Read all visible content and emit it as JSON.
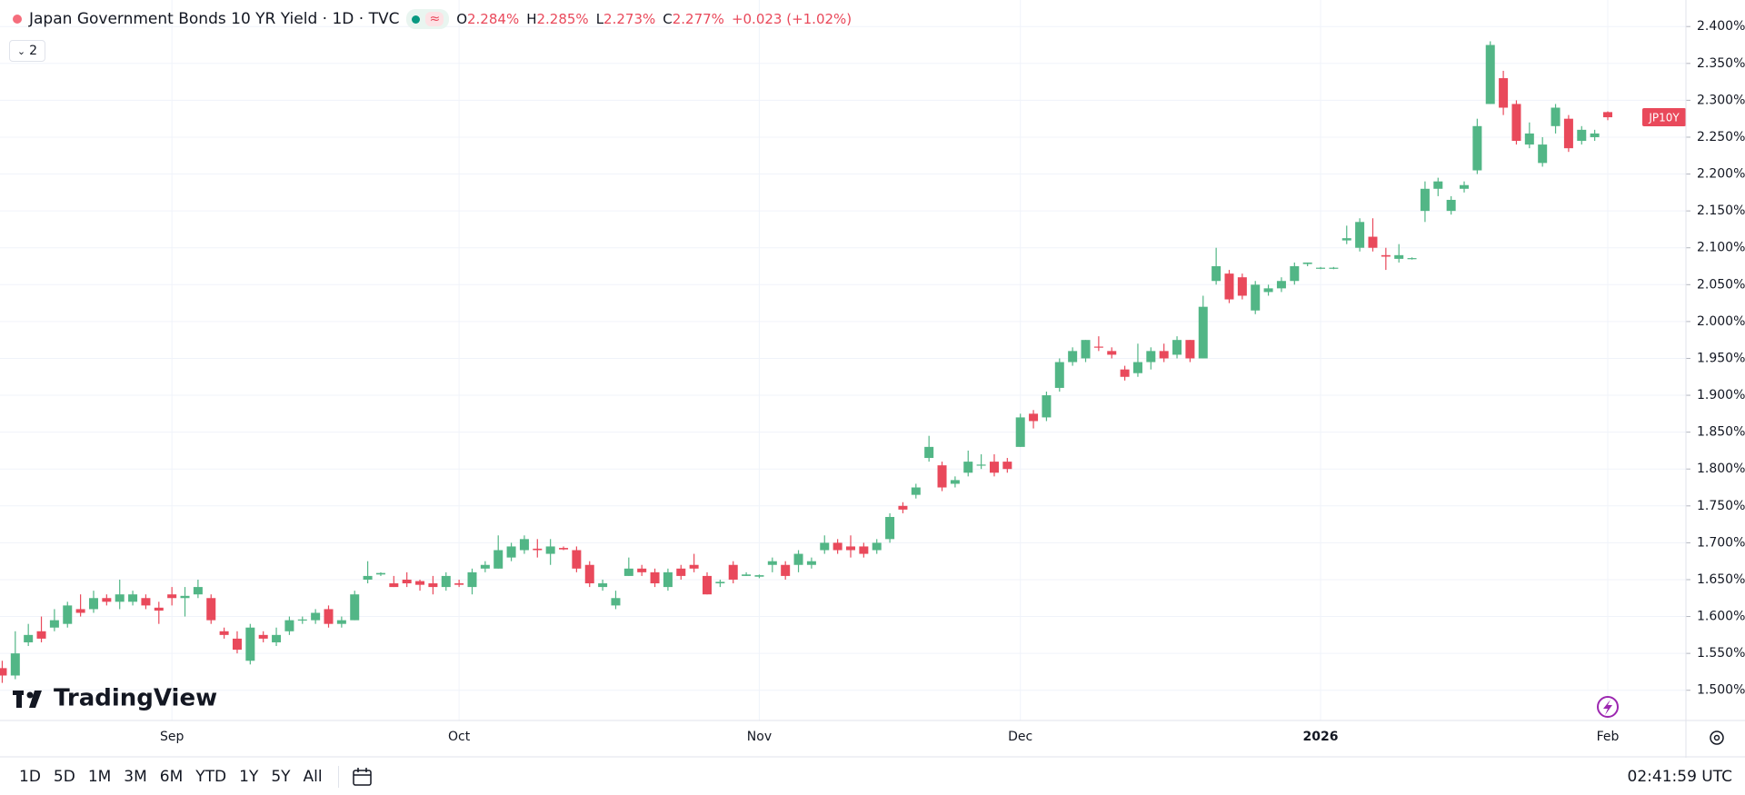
{
  "header": {
    "title": "Japan Government Bonds 10 YR Yield · 1D · TVC",
    "ohlc": [
      {
        "label": "O",
        "value": "2.284%"
      },
      {
        "label": "H",
        "value": "2.285%"
      },
      {
        "label": "L",
        "value": "2.273%"
      },
      {
        "label": "C",
        "value": "2.277%"
      }
    ],
    "change": "+0.023 (+1.02%)",
    "indicators": "2"
  },
  "watermark": "TradingView",
  "toolbar": {
    "ranges": [
      "1D",
      "5D",
      "1M",
      "3M",
      "6M",
      "YTD",
      "1Y",
      "5Y",
      "All"
    ],
    "time": "02:41:59 UTC"
  },
  "chart_data": {
    "type": "candlestick",
    "symbol_tag": "JP10Y",
    "up_color": "#52b686",
    "down_color": "#e9495b",
    "grid": true,
    "ylim": [
      1.459,
      2.436
    ],
    "yticks": [
      {
        "value": 1.5,
        "label": "1.500%"
      },
      {
        "value": 1.55,
        "label": "1.550%"
      },
      {
        "value": 1.6,
        "label": "1.600%"
      },
      {
        "value": 1.65,
        "label": "1.650%"
      },
      {
        "value": 1.7,
        "label": "1.700%"
      },
      {
        "value": 1.75,
        "label": "1.750%"
      },
      {
        "value": 1.8,
        "label": "1.800%"
      },
      {
        "value": 1.85,
        "label": "1.850%"
      },
      {
        "value": 1.9,
        "label": "1.900%"
      },
      {
        "value": 1.95,
        "label": "1.950%"
      },
      {
        "value": 2.0,
        "label": "2.000%"
      },
      {
        "value": 2.05,
        "label": "2.050%"
      },
      {
        "value": 2.1,
        "label": "2.100%"
      },
      {
        "value": 2.15,
        "label": "2.150%"
      },
      {
        "value": 2.2,
        "label": "2.200%"
      },
      {
        "value": 2.25,
        "label": "2.250%"
      },
      {
        "value": 2.3,
        "label": "2.300%"
      },
      {
        "value": 2.35,
        "label": "2.350%"
      },
      {
        "value": 2.4,
        "label": "2.400%"
      }
    ],
    "categories": [
      null,
      null,
      null,
      null,
      null,
      null,
      null,
      null,
      null,
      null,
      null,
      null,
      null,
      "Sep",
      null,
      null,
      null,
      null,
      null,
      null,
      null,
      null,
      null,
      null,
      null,
      null,
      null,
      null,
      null,
      null,
      null,
      null,
      null,
      null,
      null,
      "Oct",
      null,
      null,
      null,
      null,
      null,
      null,
      null,
      null,
      null,
      null,
      null,
      null,
      null,
      null,
      null,
      null,
      null,
      null,
      null,
      null,
      null,
      null,
      "Nov",
      null,
      null,
      null,
      null,
      null,
      null,
      null,
      null,
      null,
      null,
      null,
      null,
      null,
      null,
      null,
      null,
      null,
      null,
      null,
      "Dec",
      null,
      null,
      null,
      null,
      null,
      null,
      null,
      null,
      null,
      null,
      null,
      null,
      null,
      null,
      null,
      null,
      null,
      null,
      null,
      null,
      null,
      null,
      "2026",
      null,
      null,
      null,
      null,
      null,
      null,
      null,
      null,
      null,
      null,
      null,
      null,
      null,
      null,
      null,
      null,
      null,
      null,
      null,
      null,
      null,
      "Feb"
    ],
    "open": [
      1.53,
      1.52,
      1.565,
      1.58,
      1.585,
      1.59,
      1.61,
      1.61,
      1.625,
      1.62,
      1.62,
      1.625,
      1.612,
      1.63,
      1.625,
      1.63,
      1.625,
      1.58,
      1.57,
      1.54,
      1.575,
      1.565,
      1.58,
      1.595,
      1.595,
      1.61,
      1.59,
      1.595,
      1.65,
      1.657,
      1.645,
      1.65,
      1.648,
      1.645,
      1.64,
      1.645,
      1.64,
      1.665,
      1.665,
      1.68,
      1.69,
      1.692,
      1.685,
      1.693,
      1.69,
      1.67,
      1.64,
      1.615,
      1.655,
      1.665,
      1.66,
      1.64,
      1.665,
      1.67,
      1.655,
      1.645,
      1.67,
      1.655,
      1.654,
      1.67,
      1.67,
      1.67,
      1.67,
      1.69,
      1.7,
      1.695,
      1.695,
      1.69,
      1.705,
      1.75,
      1.765,
      1.815,
      1.805,
      1.78,
      1.795,
      1.805,
      1.81,
      1.81,
      1.83,
      1.875,
      1.87,
      1.91,
      1.945,
      1.95,
      1.966,
      1.96,
      1.935,
      1.93,
      1.945,
      1.96,
      1.955,
      1.975,
      1.95,
      2.055,
      2.065,
      2.06,
      2.015,
      2.04,
      2.045,
      2.055,
      2.078,
      2.072,
      2.072,
      2.11,
      2.1,
      2.115,
      2.09,
      2.085,
      2.085,
      2.15,
      2.18,
      2.15,
      2.18,
      2.205,
      2.295,
      2.33,
      2.295,
      2.24,
      2.215,
      2.265,
      2.275,
      2.245,
      2.25,
      2.284
    ],
    "high": [
      1.54,
      1.58,
      1.59,
      1.6,
      1.61,
      1.62,
      1.63,
      1.635,
      1.63,
      1.65,
      1.635,
      1.63,
      1.62,
      1.64,
      1.64,
      1.65,
      1.63,
      1.585,
      1.58,
      1.59,
      1.58,
      1.585,
      1.6,
      1.6,
      1.61,
      1.615,
      1.6,
      1.635,
      1.675,
      1.66,
      1.655,
      1.66,
      1.65,
      1.655,
      1.66,
      1.65,
      1.665,
      1.675,
      1.71,
      1.7,
      1.71,
      1.705,
      1.705,
      1.695,
      1.695,
      1.675,
      1.65,
      1.635,
      1.68,
      1.67,
      1.665,
      1.665,
      1.67,
      1.685,
      1.66,
      1.65,
      1.675,
      1.66,
      1.657,
      1.68,
      1.675,
      1.69,
      1.68,
      1.71,
      1.705,
      1.71,
      1.7,
      1.705,
      1.74,
      1.755,
      1.78,
      1.845,
      1.81,
      1.79,
      1.825,
      1.82,
      1.82,
      1.815,
      1.875,
      1.88,
      1.905,
      1.95,
      1.965,
      1.975,
      1.98,
      1.965,
      1.94,
      1.97,
      1.965,
      1.97,
      1.98,
      1.975,
      2.035,
      2.1,
      2.07,
      2.065,
      2.055,
      2.05,
      2.06,
      2.08,
      2.08,
      2.074,
      2.074,
      2.13,
      2.14,
      2.14,
      2.1,
      2.105,
      2.087,
      2.19,
      2.195,
      2.17,
      2.19,
      2.275,
      2.38,
      2.34,
      2.3,
      2.27,
      2.25,
      2.295,
      2.28,
      2.265,
      2.26,
      2.285
    ],
    "low": [
      1.51,
      1.515,
      1.56,
      1.565,
      1.58,
      1.585,
      1.6,
      1.605,
      1.615,
      1.61,
      1.615,
      1.61,
      1.59,
      1.615,
      1.6,
      1.625,
      1.59,
      1.57,
      1.55,
      1.535,
      1.565,
      1.56,
      1.575,
      1.59,
      1.59,
      1.585,
      1.585,
      1.595,
      1.645,
      1.655,
      1.64,
      1.64,
      1.635,
      1.63,
      1.635,
      1.64,
      1.63,
      1.66,
      1.665,
      1.675,
      1.685,
      1.68,
      1.67,
      1.69,
      1.66,
      1.64,
      1.635,
      1.61,
      1.655,
      1.655,
      1.64,
      1.635,
      1.65,
      1.66,
      1.63,
      1.64,
      1.645,
      1.655,
      1.652,
      1.66,
      1.65,
      1.66,
      1.665,
      1.685,
      1.685,
      1.68,
      1.68,
      1.685,
      1.7,
      1.74,
      1.76,
      1.81,
      1.77,
      1.775,
      1.79,
      1.8,
      1.79,
      1.795,
      1.83,
      1.855,
      1.865,
      1.905,
      1.94,
      1.945,
      1.96,
      1.95,
      1.92,
      1.925,
      1.935,
      1.945,
      1.95,
      1.945,
      1.95,
      2.05,
      2.025,
      2.03,
      2.01,
      2.035,
      2.04,
      2.05,
      2.075,
      2.071,
      2.071,
      2.105,
      2.095,
      2.095,
      2.07,
      2.08,
      2.084,
      2.135,
      2.17,
      2.145,
      2.175,
      2.2,
      2.295,
      2.28,
      2.24,
      2.235,
      2.21,
      2.255,
      2.23,
      2.24,
      2.245,
      2.273
    ],
    "close": [
      1.52,
      1.55,
      1.575,
      1.57,
      1.595,
      1.615,
      1.605,
      1.625,
      1.62,
      1.63,
      1.63,
      1.615,
      1.608,
      1.625,
      1.628,
      1.64,
      1.595,
      1.575,
      1.555,
      1.585,
      1.57,
      1.575,
      1.595,
      1.596,
      1.605,
      1.59,
      1.595,
      1.63,
      1.655,
      1.659,
      1.64,
      1.645,
      1.643,
      1.64,
      1.655,
      1.643,
      1.66,
      1.67,
      1.69,
      1.695,
      1.705,
      1.69,
      1.695,
      1.691,
      1.665,
      1.645,
      1.645,
      1.625,
      1.665,
      1.66,
      1.645,
      1.66,
      1.655,
      1.665,
      1.63,
      1.647,
      1.65,
      1.657,
      1.656,
      1.675,
      1.655,
      1.685,
      1.675,
      1.7,
      1.69,
      1.69,
      1.685,
      1.7,
      1.735,
      1.745,
      1.775,
      1.83,
      1.775,
      1.785,
      1.81,
      1.806,
      1.795,
      1.8,
      1.87,
      1.865,
      1.9,
      1.945,
      1.96,
      1.975,
      1.965,
      1.955,
      1.925,
      1.945,
      1.96,
      1.95,
      1.975,
      1.95,
      2.02,
      2.075,
      2.03,
      2.035,
      2.05,
      2.045,
      2.055,
      2.075,
      2.08,
      2.073,
      2.073,
      2.113,
      2.135,
      2.1,
      2.088,
      2.09,
      2.086,
      2.18,
      2.19,
      2.165,
      2.185,
      2.265,
      2.375,
      2.29,
      2.245,
      2.255,
      2.24,
      2.29,
      2.235,
      2.26,
      2.255,
      2.277
    ]
  }
}
